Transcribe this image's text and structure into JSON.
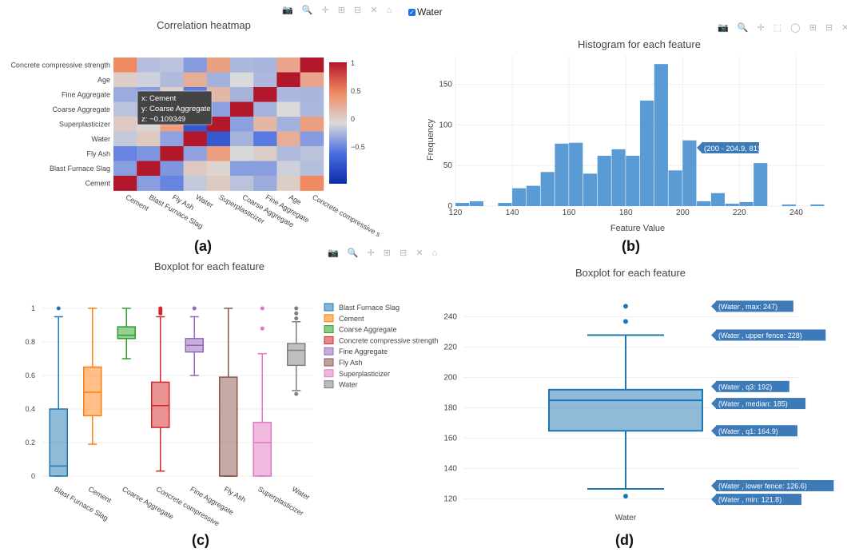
{
  "captions": {
    "a": "(a)",
    "b": "(b)",
    "c": "(c)",
    "d": "(d)"
  },
  "water_toggle": {
    "label": "Water",
    "checked": true
  },
  "colors": {
    "box_blue": "#1f77b4",
    "hist_blue": "#5b9bd5"
  },
  "chart_data": [
    {
      "type": "heatmap",
      "title": "Correlation heatmap",
      "x_labels": [
        "Cement",
        "Blast Furnace Slag",
        "Fly Ash",
        "Water",
        "Superplasticizer",
        "Coarse Aggregate",
        "Fine Aggregate",
        "Age",
        "Concrete compressive s"
      ],
      "y_labels": [
        "Concrete compressive strength",
        "Age",
        "Fine Aggregate",
        "Coarse Aggregate",
        "Superplasticizer",
        "Water",
        "Fly Ash",
        "Blast Furnace Slag",
        "Cement"
      ],
      "z": [
        [
          0.5,
          -0.13,
          -0.11,
          -0.29,
          0.37,
          -0.16,
          -0.17,
          0.33,
          1.0
        ],
        [
          0.08,
          -0.04,
          -0.15,
          0.28,
          -0.19,
          -0.0,
          -0.16,
          1.0,
          0.33
        ],
        [
          -0.22,
          -0.28,
          0.08,
          -0.45,
          0.22,
          -0.18,
          1.0,
          -0.16,
          -0.17
        ],
        [
          -0.11,
          -0.28,
          -0.01,
          -0.18,
          -0.27,
          1.0,
          -0.18,
          -0.0,
          -0.16
        ],
        [
          0.1,
          0.04,
          0.38,
          -0.66,
          1.0,
          -0.27,
          0.22,
          -0.19,
          0.37
        ],
        [
          -0.08,
          0.11,
          -0.26,
          1.0,
          -0.66,
          -0.18,
          -0.45,
          0.28,
          -0.29
        ],
        [
          -0.4,
          -0.32,
          1.0,
          -0.26,
          0.38,
          -0.01,
          0.08,
          -0.15,
          -0.11
        ],
        [
          -0.28,
          1.0,
          -0.32,
          0.11,
          0.04,
          -0.28,
          -0.28,
          -0.04,
          -0.13
        ],
        [
          1.0,
          -0.28,
          -0.4,
          -0.08,
          0.1,
          -0.11,
          -0.22,
          0.08,
          0.5
        ]
      ],
      "colorbar_ticks": [
        "1",
        "0.5",
        "0",
        "−0.5"
      ],
      "tooltip": {
        "x": "x: Cement",
        "y": "y: Coarse Aggregate",
        "z": "z: −0.109349"
      }
    },
    {
      "type": "bar",
      "title": "Histogram for each feature",
      "xlabel": "Feature Value",
      "ylabel": "Frequency",
      "xlim": [
        120,
        250
      ],
      "ylim": [
        0,
        185
      ],
      "x_ticks": [
        "120",
        "140",
        "160",
        "180",
        "200",
        "220",
        "240"
      ],
      "y_ticks": [
        "0",
        "50",
        "100",
        "150"
      ],
      "bin_width": 5,
      "bin_starts": [
        120,
        125,
        130,
        135,
        140,
        145,
        150,
        155,
        160,
        165,
        170,
        175,
        180,
        185,
        190,
        195,
        200,
        205,
        210,
        215,
        220,
        225,
        230,
        235,
        240,
        245
      ],
      "values": [
        4,
        6,
        0,
        4,
        22,
        25,
        42,
        77,
        78,
        40,
        62,
        70,
        62,
        130,
        175,
        44,
        81,
        6,
        16,
        3,
        5,
        53,
        0,
        2,
        0,
        2
      ],
      "tooltip": "(200 - 204.9, 81)"
    },
    {
      "type": "box",
      "title": "Boxplot for each feature",
      "ylim": [
        0,
        1
      ],
      "y_ticks": [
        "0",
        "0.2",
        "0.4",
        "0.6",
        "0.8",
        "1"
      ],
      "series": [
        {
          "name": "Blast Furnace Slag",
          "color": "#1f77b4",
          "min": 0,
          "q1": 0,
          "median": 0.06,
          "q3": 0.4,
          "max": 0.95,
          "outliers": [
            1.0
          ]
        },
        {
          "name": "Cement",
          "color": "#ff7f0e",
          "min": 0.19,
          "q1": 0.36,
          "median": 0.5,
          "q3": 0.65,
          "max": 1.0,
          "outliers": []
        },
        {
          "name": "Coarse Aggregate",
          "color": "#2ca02c",
          "min": 0.7,
          "q1": 0.82,
          "median": 0.84,
          "q3": 0.89,
          "max": 1.0,
          "outliers": []
        },
        {
          "name": "Concrete compressive strength",
          "color": "#d62728",
          "min": 0.03,
          "q1": 0.29,
          "median": 0.42,
          "q3": 0.56,
          "max": 0.95,
          "outliers": [
            0.97,
            0.98,
            0.99,
            1.0
          ]
        },
        {
          "name": "Fine Aggregate",
          "color": "#9467bd",
          "min": 0.6,
          "q1": 0.74,
          "median": 0.78,
          "q3": 0.82,
          "max": 0.95,
          "outliers": [
            1.0
          ]
        },
        {
          "name": "Fly Ash",
          "color": "#8c564b",
          "min": 0,
          "q1": 0,
          "median": 0,
          "q3": 0.59,
          "max": 1.0,
          "outliers": []
        },
        {
          "name": "Superplasticizer",
          "color": "#e377c2",
          "min": 0,
          "q1": 0,
          "median": 0.2,
          "q3": 0.32,
          "max": 0.73,
          "outliers": [
            0.88,
            1.0
          ]
        },
        {
          "name": "Water",
          "color": "#7f7f7f",
          "min": 0.51,
          "q1": 0.66,
          "median": 0.75,
          "q3": 0.79,
          "max": 0.92,
          "outliers": [
            0.49,
            0.94,
            0.97,
            1.0
          ]
        }
      ],
      "x_labels": [
        "Blast Furnace Slag",
        "Cement",
        "Coarse Aggregate",
        "Concrete compressive",
        "Fine Aggregate",
        "Fly Ash",
        "Superplasticizer",
        "Water"
      ],
      "legend_labels": [
        "Blast Furnace Slag",
        "Cement",
        "Coarse Aggregate",
        "Concrete compressive strength",
        "Fine Aggregate",
        "Fly Ash",
        "Superplasticizer",
        "Water"
      ]
    },
    {
      "type": "box",
      "title": "Boxplot for each feature",
      "category": "Water",
      "ylim": [
        115,
        253
      ],
      "y_ticks": [
        "120",
        "140",
        "160",
        "180",
        "200",
        "220",
        "240"
      ],
      "min": 121.8,
      "lower_fence": 126.6,
      "q1": 164.9,
      "median": 185,
      "q3": 192,
      "upper_fence": 228,
      "max": 247,
      "outliers": [
        121.8,
        237,
        247
      ],
      "hover_labels": [
        "(Water , max: 247)",
        "(Water , upper fence: 228)",
        "(Water , q3: 192)",
        "(Water , median: 185)",
        "(Water , q1: 164.9)",
        "(Water , lower fence: 126.6)",
        "(Water , min: 121.8)"
      ]
    }
  ]
}
